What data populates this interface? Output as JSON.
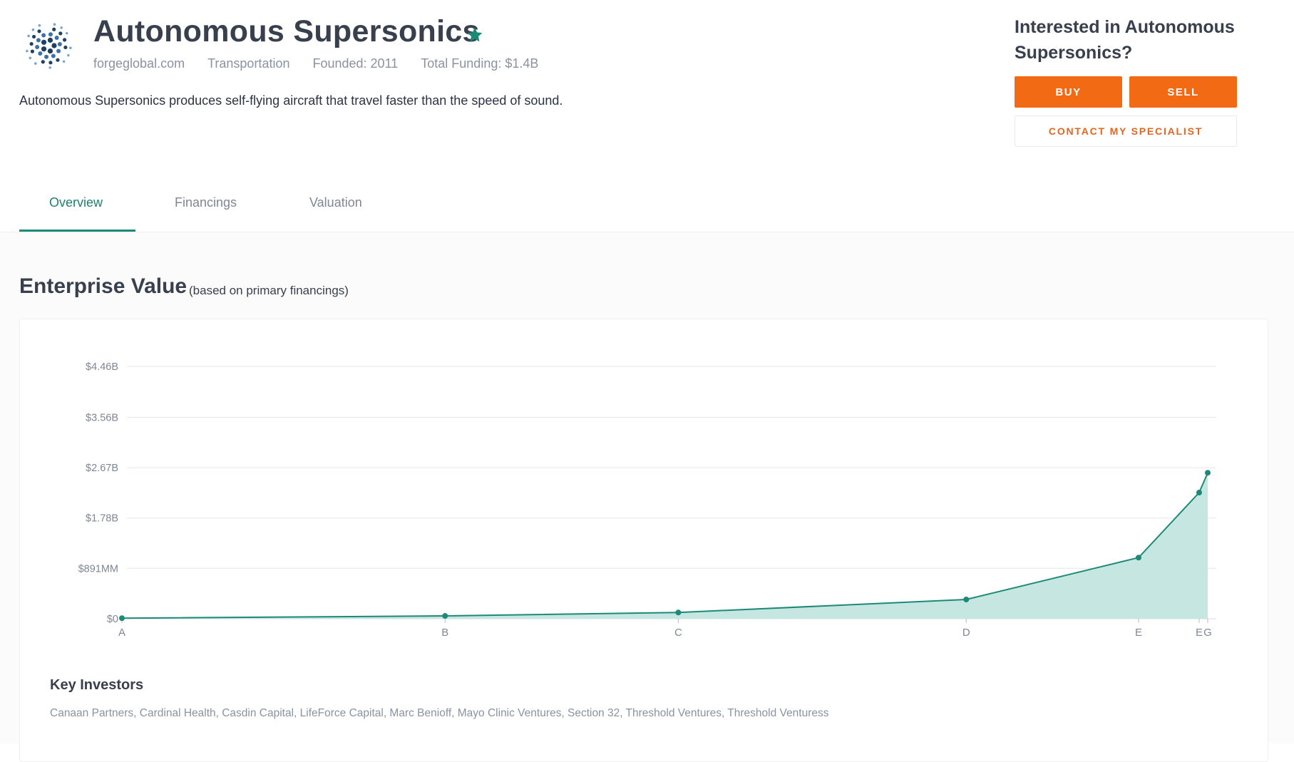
{
  "company": {
    "name": "Autonomous Supersonics",
    "website": "forgeglobal.com",
    "industry": "Transportation",
    "founded": "Founded: 2011",
    "total_funding": "Total Funding: $1.4B",
    "description": "Autonomous Supersonics produces self-flying aircraft that travel faster than the speed of sound."
  },
  "icons": {
    "logo": "company-logo-dot-swirl",
    "favorite": "star-icon"
  },
  "cta": {
    "title": "Interested in Autonomous Supersonics?",
    "buy_label": "BUY",
    "sell_label": "SELL",
    "contact_label": "CONTACT MY SPECIALIST"
  },
  "tabs": [
    {
      "label": "Overview",
      "active": true
    },
    {
      "label": "Financings",
      "active": false
    },
    {
      "label": "Valuation",
      "active": false
    }
  ],
  "enterprise_value": {
    "title": "Enterprise Value",
    "subtitle": "(based on primary financings)"
  },
  "chart_data": {
    "type": "area",
    "title": "Enterprise Value",
    "subtitle": "(based on primary financings)",
    "xlabel": "",
    "ylabel": "",
    "x": [
      "A",
      "B",
      "C",
      "D",
      "E",
      "E",
      "G"
    ],
    "x_position_index": [
      0.0,
      0.2976,
      0.5124,
      0.7776,
      0.9363,
      0.9921,
      1.0
    ],
    "series": [
      {
        "values": [
          0.01,
          0.05,
          0.11,
          0.34,
          1.08,
          2.23,
          2.58
        ]
      }
    ],
    "y_ticks": [
      0,
      0.891,
      1.78,
      2.67,
      3.56,
      4.46
    ],
    "y_tick_labels": [
      "$0",
      "$891MM",
      "$1.78B",
      "$2.67B",
      "$3.56B",
      "$4.46B"
    ],
    "y_unit": "billions USD",
    "ylim": [
      0,
      4.46
    ],
    "grid": true,
    "legend": "none"
  },
  "key_investors": {
    "title": "Key Investors",
    "list": "Canaan Partners, Cardinal Health, Casdin Capital, LifeForce Capital, Marc Benioff, Mayo Clinic Ventures, Section 32, Threshold Ventures, Threshold Venturess"
  },
  "colors": {
    "accent_teal": "#1d8a78",
    "area_fill": "#c6e7e1",
    "button_orange": "#f36a14",
    "contact_text": "#e2661e",
    "logo_dark": "#1f3f63",
    "logo_blue": "#3d72a8",
    "logo_light": "#7aa7cf"
  }
}
